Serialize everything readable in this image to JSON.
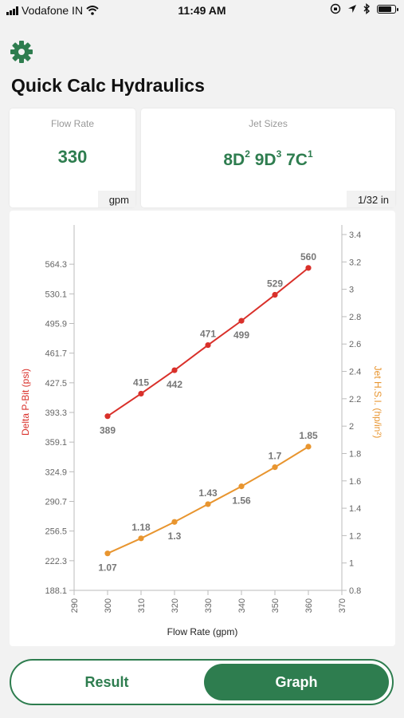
{
  "status": {
    "carrier": "Vodafone IN",
    "time": "11:49 AM",
    "battery_level": 0.85
  },
  "header": {
    "settings_icon": "gear-icon",
    "title": "Quick Calc Hydraulics"
  },
  "flow_card": {
    "label": "Flow Rate",
    "value": "330",
    "unit": "gpm"
  },
  "jet_card": {
    "label": "Jet Sizes",
    "unit": "1/32 in",
    "jets": [
      {
        "size": "8D",
        "count": "2"
      },
      {
        "size": "9D",
        "count": "3"
      },
      {
        "size": "7C",
        "count": "1"
      }
    ]
  },
  "chart_data": {
    "type": "line",
    "xlabel": "Flow Rate (gpm)",
    "ylabel_left": "Delta P-Bit (psi)",
    "ylabel_right": "Jet H.S.I. (hp/in²)",
    "x_ticks": [
      "290",
      "300",
      "310",
      "320",
      "330",
      "340",
      "350",
      "360",
      "370"
    ],
    "xlim": [
      290,
      370
    ],
    "y_left_ticks": [
      "188.1",
      "222.3",
      "256.5",
      "290.7",
      "324.9",
      "359.1",
      "393.3",
      "427.5",
      "461.7",
      "495.9",
      "530.1",
      "564.3"
    ],
    "y_left_lim": [
      188.1,
      598.5
    ],
    "y_right_ticks": [
      "0.8",
      "1",
      "1.2",
      "1.4",
      "1.6",
      "1.8",
      "2",
      "2.2",
      "2.4",
      "2.6",
      "2.8",
      "3",
      "3.2",
      "3.4"
    ],
    "y_right_lim": [
      0.8,
      3.4
    ],
    "series": [
      {
        "name": "Delta P-Bit (psi)",
        "axis": "left",
        "color": "#d9302a",
        "x": [
          300,
          310,
          320,
          330,
          340,
          350,
          360
        ],
        "values": [
          389,
          415,
          442,
          471,
          499,
          529,
          560
        ],
        "labels": [
          "389",
          "415",
          "442",
          "471",
          "499",
          "529",
          "560"
        ]
      },
      {
        "name": "Jet H.S.I. (hp/in²)",
        "axis": "right",
        "color": "#e8952f",
        "x": [
          300,
          310,
          320,
          330,
          340,
          350,
          360
        ],
        "values": [
          1.07,
          1.18,
          1.3,
          1.43,
          1.56,
          1.7,
          1.85
        ],
        "labels": [
          "1.07",
          "1.18",
          "1.3",
          "1.43",
          "1.56",
          "1.7",
          "1.85"
        ]
      }
    ]
  },
  "tabs": {
    "result_label": "Result",
    "graph_label": "Graph",
    "active": "Graph"
  },
  "colors": {
    "accent": "#2e7d4f",
    "delta_p": "#d9302a",
    "hsi": "#e8952f"
  }
}
